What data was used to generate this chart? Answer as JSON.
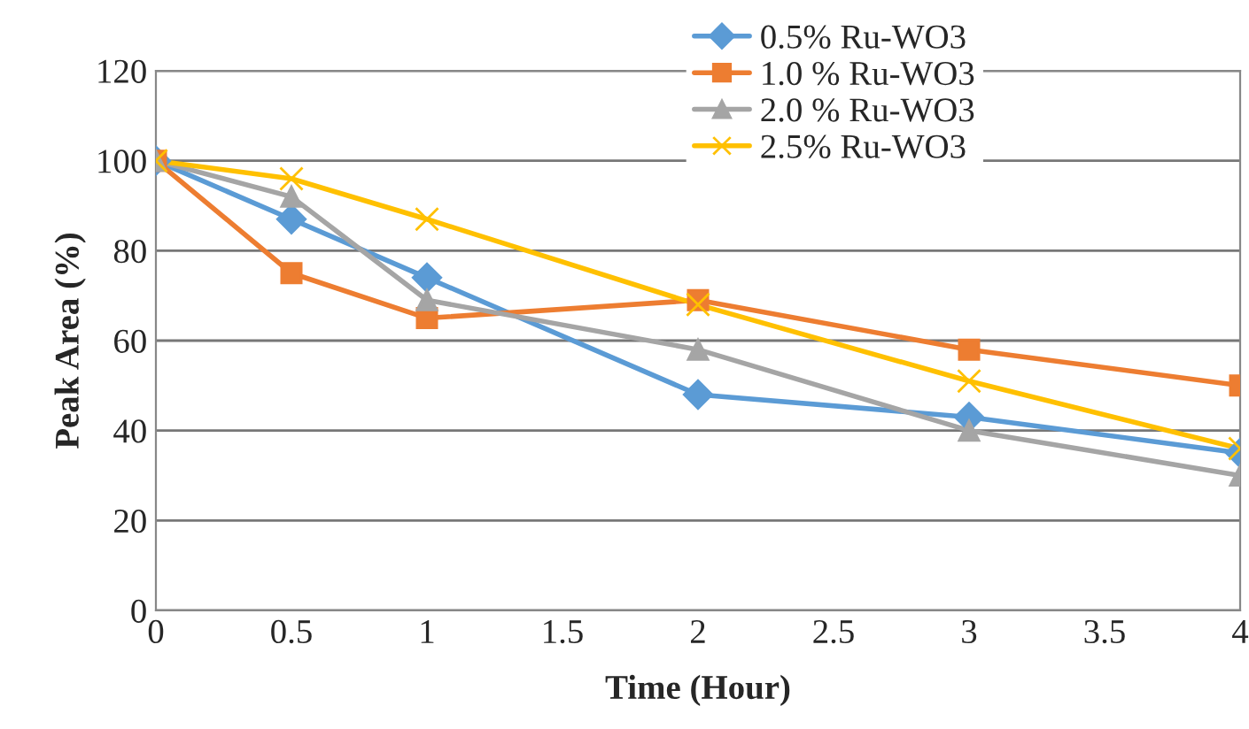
{
  "chart_data": {
    "type": "line",
    "xlabel": "Time (Hour)",
    "ylabel": "Peak Area (%)",
    "x": [
      0,
      0.5,
      1,
      2,
      3,
      4
    ],
    "series": [
      {
        "name": "0.5% Ru-WO3",
        "color": "#5b9bd5",
        "marker": "diamond",
        "values": [
          100,
          87,
          74,
          48,
          43,
          35
        ]
      },
      {
        "name": "1.0 % Ru-WO3",
        "color": "#ed7d31",
        "marker": "square",
        "values": [
          100,
          75,
          65,
          69,
          58,
          50
        ]
      },
      {
        "name": "2.0 % Ru-WO3",
        "color": "#a5a5a5",
        "marker": "triangle",
        "values": [
          100,
          92,
          69,
          58,
          40,
          30
        ]
      },
      {
        "name": "2.5% Ru-WO3",
        "color": "#ffc000",
        "marker": "cross",
        "values": [
          100,
          96,
          87,
          68,
          51,
          36
        ]
      }
    ],
    "xlim": [
      0,
      4
    ],
    "xticks": [
      0,
      0.5,
      1,
      1.5,
      2,
      2.5,
      3,
      3.5,
      4
    ],
    "ylim": [
      0,
      120
    ],
    "yticks": [
      0,
      20,
      40,
      60,
      80,
      100,
      120
    ],
    "grid": "y",
    "legend": "top right",
    "line_style": "solid"
  }
}
